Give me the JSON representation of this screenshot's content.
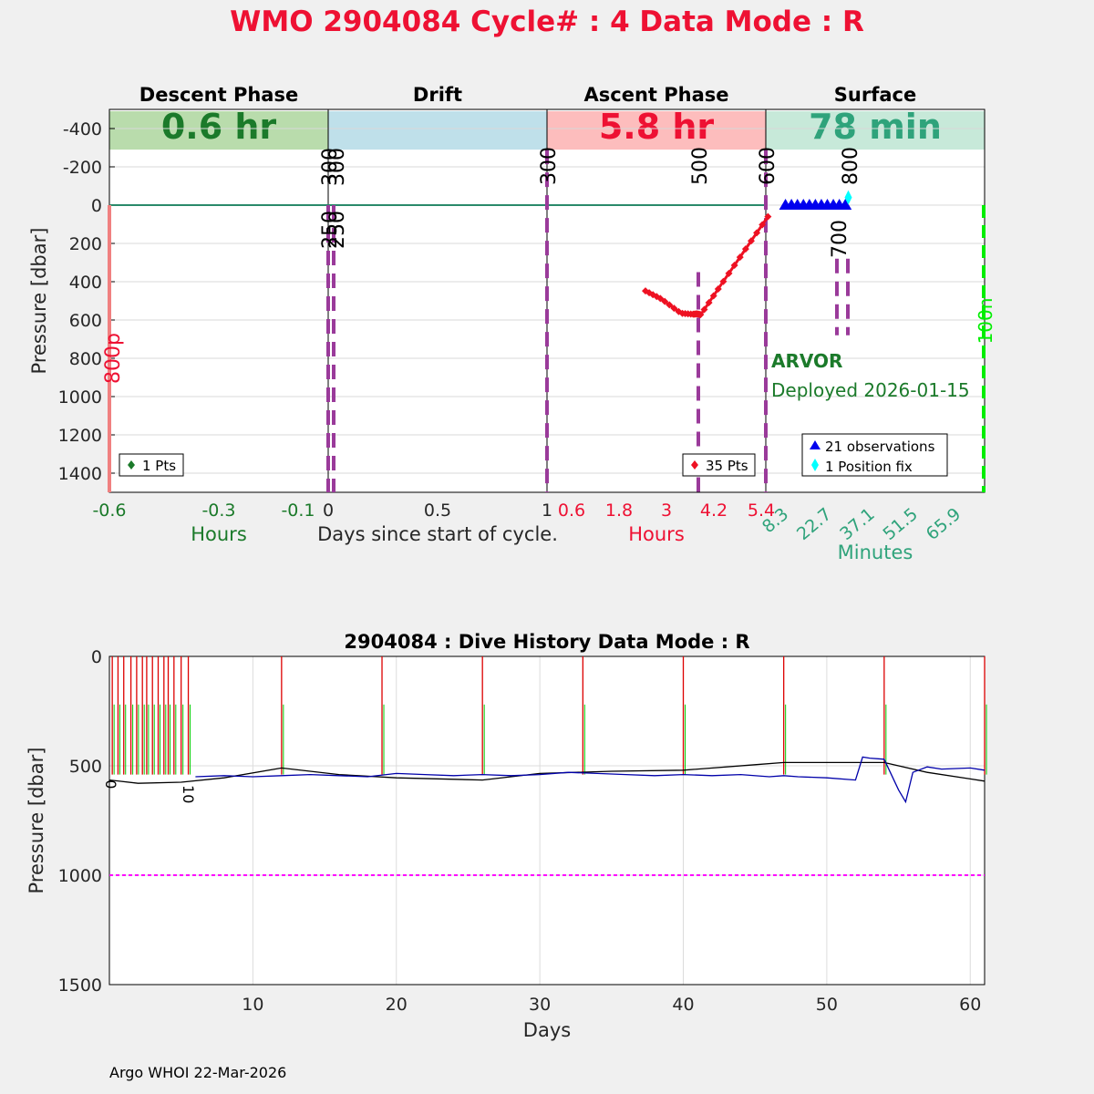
{
  "header": {
    "title": "WMO 2904084   Cycle# : 4   Data Mode : R",
    "footer": "Argo WHOI 22-Mar-2026"
  },
  "colors": {
    "title": "#ee1133",
    "descent": "#1b7a2a",
    "descent_fill": "#b9dcac",
    "drift_fill": "#bfe0ea",
    "ascent": "#ee1133",
    "ascent_fill": "#fdbdbd",
    "surface": "#2fa37b",
    "surface_fill": "#c7e9d9",
    "marker": "#9a3a9a",
    "ascent_profile": "#ee1122",
    "observations": "#0000ee",
    "position_fix": "#00ffff",
    "park_depth_line": "#ff00ff",
    "deploy_line": "#00ee00"
  },
  "chart_data": [
    {
      "type": "line",
      "title": "WMO 2904084   Cycle# : 4   Data Mode : R",
      "ylabel": "Pressure [dbar]",
      "xlabel": "Days since start of cycle.",
      "ylim": [
        -500,
        1500
      ],
      "y_reversed": true,
      "grid": true,
      "yticks": [
        -400,
        -200,
        0,
        200,
        400,
        600,
        800,
        1000,
        1200,
        1400
      ],
      "phases": [
        {
          "name": "Descent Phase",
          "duration": "0.6 hr",
          "axis_label": "Hours",
          "ticks": [
            "-0.6",
            "-0.3",
            "-0.1"
          ]
        },
        {
          "name": "Drift",
          "duration": "",
          "axis_label": "Days since start of cycle.",
          "ticks": [
            "0",
            "0.5",
            "1"
          ]
        },
        {
          "name": "Ascent Phase",
          "duration": "5.8 hr",
          "axis_label": "Hours",
          "ticks": [
            "0.6",
            "1.8",
            "3",
            "4.2",
            "5.4"
          ]
        },
        {
          "name": "Surface",
          "duration": "78 min",
          "axis_label": "Minutes",
          "ticks": [
            "8.3",
            "22.7",
            "37.1",
            "51.5",
            "65.9"
          ]
        }
      ],
      "event_labels": {
        "descent_end": [
          "250",
          "300"
        ],
        "drift_end": "300",
        "ascent": [
          "500",
          "600"
        ],
        "surface": [
          "700",
          "800"
        ],
        "deploy_label": "800p",
        "surface_depth_label": "100n"
      },
      "float": {
        "model": "ARVOR",
        "deployed": "Deployed 2026-01-15"
      },
      "legends": {
        "descent": "1 Pts",
        "ascent": "35 Pts",
        "surface": [
          "21 observations",
          "1 Position fix"
        ]
      },
      "series": [
        {
          "name": "35 Pts",
          "color": "#ee1122",
          "hours": [
            2.7,
            3.1,
            3.6,
            3.9,
            4.0,
            4.1,
            4.6,
            5.2,
            5.8
          ],
          "pressure": [
            448,
            490,
            565,
            570,
            568,
            572,
            420,
            240,
            60
          ]
        },
        {
          "name": "21 observations",
          "color": "#0000ee",
          "minutes": [
            10,
            12,
            14,
            16,
            18,
            20,
            22,
            24,
            26,
            28,
            30
          ],
          "pressure": [
            0,
            0,
            0,
            0,
            0,
            0,
            0,
            0,
            0,
            0,
            0
          ]
        },
        {
          "name": "1 Position fix",
          "color": "#00ffff",
          "minutes": [
            31
          ],
          "pressure": [
            -40
          ]
        }
      ]
    },
    {
      "type": "line",
      "title": "2904084 : Dive History      Data Mode : R",
      "xlabel": "Days",
      "ylabel": "Pressure [dbar]",
      "xlim": [
        0,
        61
      ],
      "ylim": [
        0,
        1500
      ],
      "y_reversed": true,
      "xticks": [
        10,
        20,
        30,
        40,
        50,
        60
      ],
      "yticks": [
        0,
        500,
        1000,
        1500
      ],
      "grid": true,
      "cycle_labels": [
        "0",
        "10"
      ],
      "park_pressure": 1000,
      "profile_days": [
        0.2,
        0.6,
        1.0,
        1.5,
        1.9,
        2.3,
        2.6,
        3.0,
        3.4,
        3.8,
        4.1,
        4.5,
        5.0,
        5.5,
        12.0,
        19.0,
        26.0,
        33.0,
        40.0,
        47.0,
        54.0,
        61.0
      ],
      "series": [
        {
          "name": "seafloor",
          "color": "#000000",
          "x": [
            0,
            2,
            5,
            8,
            12,
            16,
            20,
            26,
            30,
            35,
            40,
            45,
            47,
            50,
            54,
            57,
            60,
            61
          ],
          "y": [
            565,
            580,
            575,
            555,
            510,
            540,
            555,
            565,
            535,
            525,
            520,
            495,
            485,
            485,
            485,
            530,
            560,
            570
          ]
        },
        {
          "name": "drift",
          "color": "#0000aa",
          "x": [
            6,
            8,
            10,
            12,
            14,
            16,
            18,
            20,
            22,
            24,
            26,
            28,
            30,
            32,
            34,
            36,
            38,
            40,
            42,
            44,
            46,
            47,
            48,
            50,
            52,
            52.5,
            53,
            54,
            55,
            55.5,
            56,
            57,
            58,
            60,
            61
          ],
          "y": [
            550,
            545,
            550,
            545,
            540,
            545,
            550,
            535,
            540,
            545,
            540,
            545,
            540,
            530,
            535,
            540,
            545,
            540,
            545,
            540,
            550,
            545,
            550,
            555,
            565,
            460,
            465,
            470,
            610,
            665,
            530,
            505,
            515,
            510,
            520
          ]
        }
      ]
    }
  ]
}
